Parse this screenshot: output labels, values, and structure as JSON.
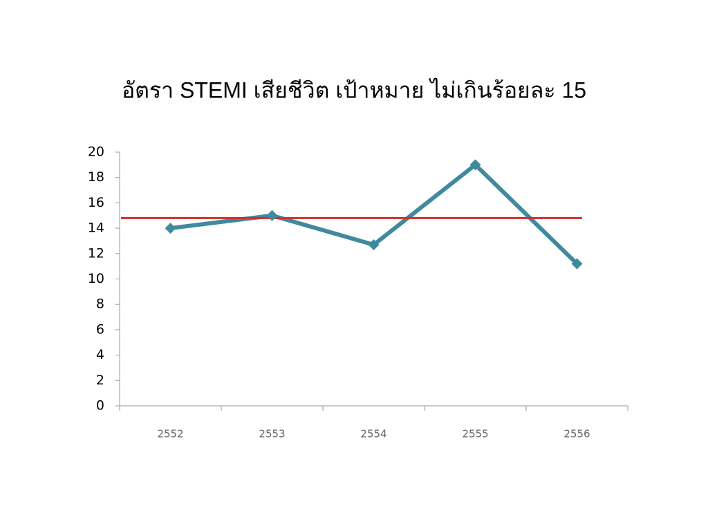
{
  "chart_data": {
    "type": "line",
    "title": "อัตรา STEMI เสียชีวิต เป้าหมาย ไม่เกินร้อยละ 15",
    "categories": [
      "2552",
      "2553",
      "2554",
      "2555",
      "2556"
    ],
    "values": [
      14,
      15,
      12.7,
      19,
      11.2
    ],
    "color": "#3f8a9d",
    "reference_line": {
      "value": 14.8,
      "color": "#d62a2a"
    },
    "ylim": [
      0,
      20
    ],
    "yticks": [
      0,
      2,
      4,
      6,
      8,
      10,
      12,
      14,
      16,
      18,
      20
    ],
    "grid": false
  }
}
